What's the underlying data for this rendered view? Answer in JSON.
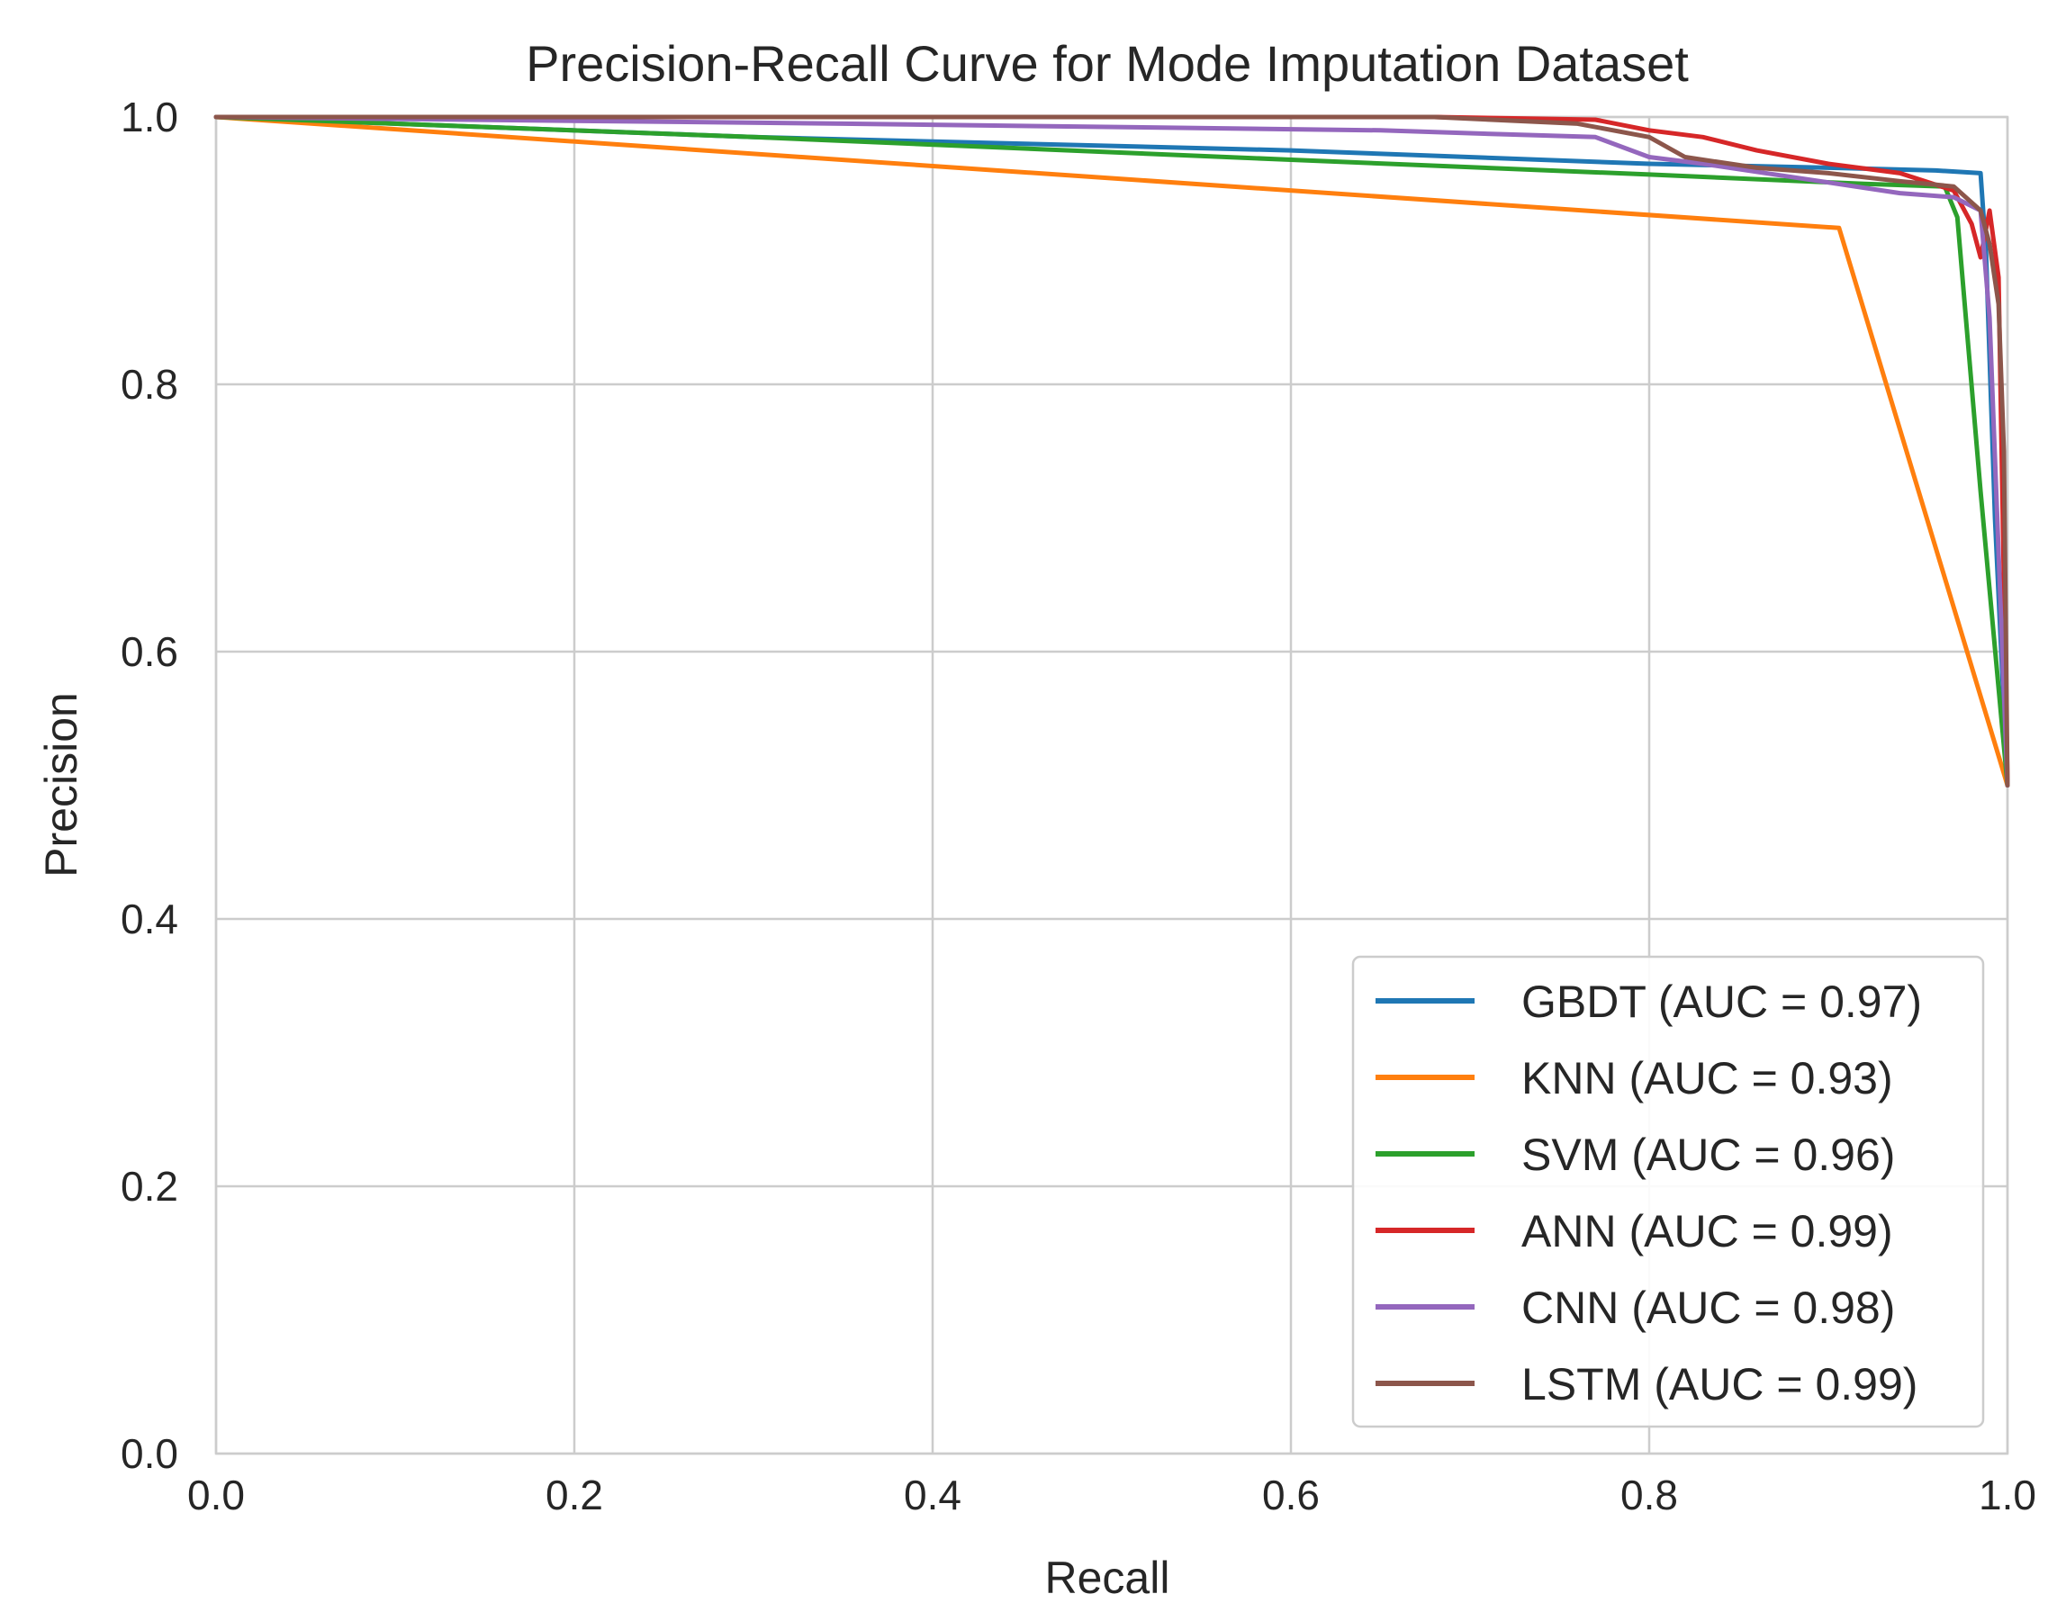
{
  "chart_data": {
    "type": "line",
    "title": "Precision-Recall Curve for Mode Imputation Dataset",
    "xlabel": "Recall",
    "ylabel": "Precision",
    "xlim": [
      0.0,
      1.0
    ],
    "ylim": [
      0.0,
      1.0
    ],
    "xticks": [
      "0.0",
      "0.2",
      "0.4",
      "0.6",
      "0.8",
      "1.0"
    ],
    "yticks": [
      "0.0",
      "0.2",
      "0.4",
      "0.6",
      "0.8",
      "1.0"
    ],
    "grid": true,
    "legend_position": "lower-right",
    "series": [
      {
        "name": "GBDT (AUC = 0.97)",
        "color": "#1f77b4",
        "points": [
          [
            0.0,
            1.0
          ],
          [
            0.3,
            0.985
          ],
          [
            0.6,
            0.975
          ],
          [
            0.8,
            0.965
          ],
          [
            0.9,
            0.962
          ],
          [
            0.96,
            0.96
          ],
          [
            0.985,
            0.958
          ],
          [
            0.988,
            0.9
          ],
          [
            0.993,
            0.7
          ],
          [
            1.0,
            0.5
          ]
        ]
      },
      {
        "name": "KNN (AUC = 0.93)",
        "color": "#ff7f0e",
        "points": [
          [
            0.0,
            1.0
          ],
          [
            0.906,
            0.917
          ],
          [
            1.0,
            0.5
          ]
        ]
      },
      {
        "name": "SVM (AUC = 0.96)",
        "color": "#2ca02c",
        "points": [
          [
            0.0,
            1.0
          ],
          [
            0.3,
            0.985
          ],
          [
            0.6,
            0.968
          ],
          [
            0.8,
            0.957
          ],
          [
            0.92,
            0.95
          ],
          [
            0.965,
            0.948
          ],
          [
            0.972,
            0.925
          ],
          [
            0.985,
            0.72
          ],
          [
            1.0,
            0.5
          ]
        ]
      },
      {
        "name": "ANN (AUC = 0.99)",
        "color": "#d62728",
        "points": [
          [
            0.0,
            1.0
          ],
          [
            0.68,
            1.0
          ],
          [
            0.77,
            0.998
          ],
          [
            0.8,
            0.99
          ],
          [
            0.83,
            0.985
          ],
          [
            0.86,
            0.975
          ],
          [
            0.9,
            0.965
          ],
          [
            0.94,
            0.958
          ],
          [
            0.97,
            0.945
          ],
          [
            0.98,
            0.92
          ],
          [
            0.985,
            0.895
          ],
          [
            0.99,
            0.93
          ],
          [
            0.995,
            0.88
          ],
          [
            1.0,
            0.5
          ]
        ]
      },
      {
        "name": "CNN (AUC = 0.98)",
        "color": "#9467bd",
        "points": [
          [
            0.0,
            1.0
          ],
          [
            0.35,
            0.995
          ],
          [
            0.65,
            0.99
          ],
          [
            0.72,
            0.987
          ],
          [
            0.77,
            0.985
          ],
          [
            0.8,
            0.97
          ],
          [
            0.83,
            0.965
          ],
          [
            0.88,
            0.955
          ],
          [
            0.94,
            0.943
          ],
          [
            0.97,
            0.94
          ],
          [
            0.985,
            0.93
          ],
          [
            0.99,
            0.85
          ],
          [
            1.0,
            0.5
          ]
        ]
      },
      {
        "name": "LSTM (AUC = 0.99)",
        "color": "#8c564b",
        "points": [
          [
            0.0,
            1.0
          ],
          [
            0.68,
            1.0
          ],
          [
            0.76,
            0.995
          ],
          [
            0.8,
            0.985
          ],
          [
            0.82,
            0.97
          ],
          [
            0.86,
            0.962
          ],
          [
            0.9,
            0.958
          ],
          [
            0.94,
            0.952
          ],
          [
            0.97,
            0.948
          ],
          [
            0.985,
            0.93
          ],
          [
            0.99,
            0.905
          ],
          [
            0.995,
            0.86
          ],
          [
            0.998,
            0.75
          ],
          [
            1.0,
            0.5
          ]
        ]
      }
    ]
  }
}
